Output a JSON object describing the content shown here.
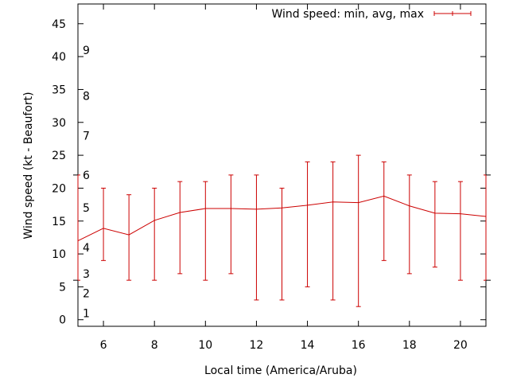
{
  "chart_data": {
    "type": "line",
    "title": "",
    "xlabel": "Local time (America/Aruba)",
    "ylabel": "Wind speed (kt - Beaufort)",
    "xlim": [
      5,
      21
    ],
    "ylim": [
      -1,
      48
    ],
    "x_ticks": [
      6,
      8,
      10,
      12,
      14,
      16,
      18,
      20
    ],
    "y_ticks": [
      0,
      5,
      10,
      15,
      20,
      25,
      30,
      35,
      40,
      45
    ],
    "grid": false,
    "legend_position": "top-right",
    "beaufort_labels": [
      {
        "label": "1",
        "kt": 1
      },
      {
        "label": "2",
        "kt": 4
      },
      {
        "label": "3",
        "kt": 7
      },
      {
        "label": "4",
        "kt": 11
      },
      {
        "label": "5",
        "kt": 17
      },
      {
        "label": "6",
        "kt": 22
      },
      {
        "label": "7",
        "kt": 28
      },
      {
        "label": "8",
        "kt": 34
      },
      {
        "label": "9",
        "kt": 41
      }
    ],
    "beaufort_boundaries": [
      6,
      22
    ],
    "series": [
      {
        "name": "Wind speed: min, avg, max",
        "color": "#cc0000",
        "x": [
          5,
          6,
          7,
          8,
          9,
          10,
          11,
          12,
          13,
          14,
          15,
          16,
          17,
          18,
          19,
          20,
          21
        ],
        "avg": [
          12,
          13.9,
          12.9,
          15.1,
          16.3,
          16.9,
          16.9,
          16.8,
          17,
          17.4,
          17.9,
          17.8,
          18.8,
          17.3,
          16.2,
          16.1,
          15.7
        ],
        "min": [
          6,
          9,
          6,
          6,
          7,
          6,
          7,
          3,
          3,
          5,
          3,
          2,
          9,
          7,
          8,
          6,
          6
        ],
        "max": [
          22,
          20,
          19,
          20,
          21,
          21,
          22,
          22,
          20,
          24,
          24,
          25,
          24,
          22,
          21,
          21,
          22
        ]
      }
    ]
  }
}
